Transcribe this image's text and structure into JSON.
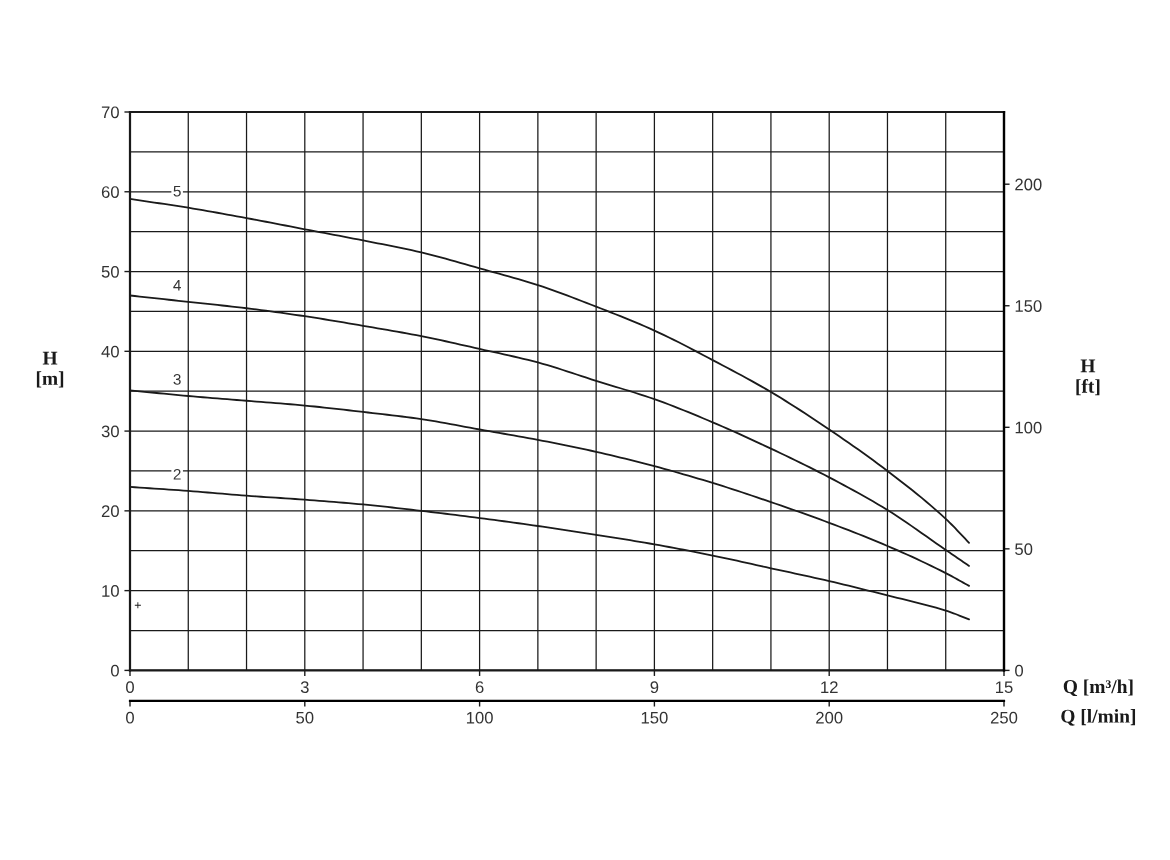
{
  "chart_data": {
    "type": "line",
    "xlabel": "Q [m³/h]",
    "x2label": "Q [l/min]",
    "ylabel": "H\n[m]",
    "y2label": "H\n[ft]",
    "x": [
      0,
      1,
      2,
      3,
      4,
      5,
      6,
      7,
      8,
      9,
      10,
      11,
      12,
      13,
      14,
      14.4
    ],
    "series": [
      {
        "name": "2",
        "color": "#1a1a1a",
        "values": [
          23.0,
          22.5,
          21.9,
          21.4,
          20.8,
          20.0,
          19.1,
          18.1,
          17.0,
          15.8,
          14.4,
          12.8,
          11.2,
          9.4,
          7.5,
          6.4
        ]
      },
      {
        "name": "3",
        "color": "#1a1a1a",
        "values": [
          35.1,
          34.4,
          33.8,
          33.2,
          32.4,
          31.5,
          30.2,
          28.9,
          27.4,
          25.6,
          23.5,
          21.1,
          18.5,
          15.6,
          12.2,
          10.6
        ]
      },
      {
        "name": "4",
        "color": "#1a1a1a",
        "values": [
          47.0,
          46.2,
          45.4,
          44.4,
          43.2,
          41.9,
          40.3,
          38.6,
          36.3,
          34.0,
          31.1,
          27.8,
          24.2,
          20.1,
          15.1,
          13.1
        ]
      },
      {
        "name": "5",
        "color": "#1a1a1a",
        "values": [
          59.1,
          58.0,
          56.7,
          55.3,
          53.9,
          52.4,
          50.4,
          48.3,
          45.6,
          42.6,
          38.9,
          34.9,
          30.2,
          25.0,
          19.0,
          16.0
        ]
      }
    ],
    "xlim": [
      0,
      15
    ],
    "xticks": [
      0,
      {
        "value": 1,
        "label": null
      },
      {
        "value": 2,
        "label": null
      },
      3,
      {
        "value": 4,
        "label": null
      },
      {
        "value": 5,
        "label": null
      },
      6,
      {
        "value": 7,
        "label": null
      },
      {
        "value": 8,
        "label": null
      },
      9,
      {
        "value": 10,
        "label": null
      },
      {
        "value": 11,
        "label": null
      },
      12,
      {
        "value": 13,
        "label": null
      },
      {
        "value": 14,
        "label": null
      },
      15
    ],
    "ylim": [
      0,
      70
    ],
    "yticks": [
      0,
      {
        "value": 5,
        "label": null
      },
      10,
      {
        "value": 15,
        "label": null
      },
      20,
      {
        "value": 25,
        "label": null
      },
      30,
      {
        "value": 35,
        "label": null
      },
      40,
      {
        "value": 45,
        "label": null
      },
      50,
      {
        "value": 55,
        "label": null
      },
      60,
      {
        "value": 65,
        "label": null
      },
      70
    ],
    "x2lim": [
      0,
      250
    ],
    "x2ticks": [
      0,
      50,
      100,
      150,
      200,
      250
    ],
    "y2lim": [
      0,
      229.7
    ],
    "y2ticks": [
      0,
      50,
      100,
      150,
      200
    ],
    "grid": true,
    "annotations": [
      "+"
    ]
  }
}
